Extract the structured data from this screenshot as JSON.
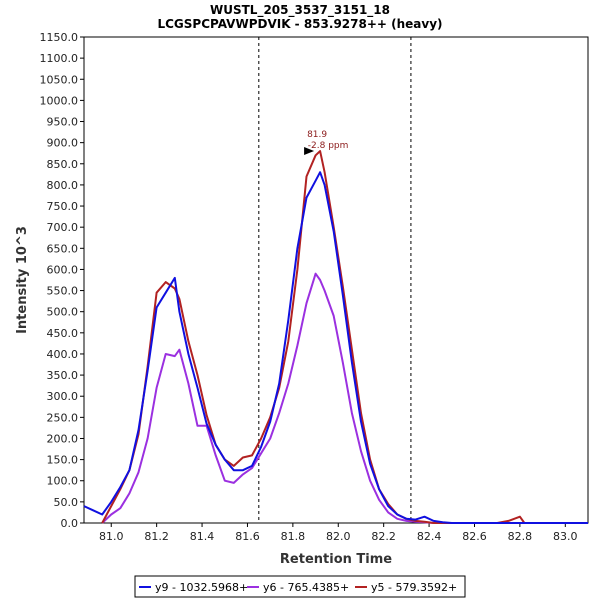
{
  "chart_data": {
    "type": "line",
    "title": "WUSTL_205_3537_3151_18",
    "subtitle": "LCGSPCPAVWPDVIK - 853.9278++ (heavy)",
    "xlabel": "Retention Time",
    "ylabel": "Intensity 10^3",
    "xlim": [
      80.88,
      83.1
    ],
    "ylim": [
      0,
      1150
    ],
    "x_ticks": [
      "81.0",
      "81.2",
      "81.4",
      "81.6",
      "81.8",
      "82.0",
      "82.2",
      "82.4",
      "82.6",
      "82.8",
      "83.0"
    ],
    "y_ticks": [
      "0.0",
      "50.0",
      "100.0",
      "150.0",
      "200.0",
      "250.0",
      "300.0",
      "350.0",
      "400.0",
      "450.0",
      "500.0",
      "550.0",
      "600.0",
      "650.0",
      "700.0",
      "750.0",
      "800.0",
      "850.0",
      "900.0",
      "950.0",
      "1000.0",
      "1050.0",
      "1100.0",
      "1150.0"
    ],
    "vlines": [
      81.65,
      82.32
    ],
    "annotation": {
      "line1": "81.9",
      "line2": "-2.8 ppm",
      "x": 81.92,
      "y": 878,
      "color": "#8b1a1a"
    },
    "legend_position": "bottom-center",
    "series": [
      {
        "name": "y9 - 1032.5968+",
        "color": "#1010e0",
        "x": [
          80.88,
          80.92,
          80.96,
          81.0,
          81.04,
          81.08,
          81.12,
          81.16,
          81.2,
          81.24,
          81.28,
          81.3,
          81.34,
          81.38,
          81.42,
          81.46,
          81.5,
          81.54,
          81.58,
          81.62,
          81.66,
          81.7,
          81.74,
          81.78,
          81.82,
          81.86,
          81.9,
          81.92,
          81.94,
          81.98,
          82.02,
          82.06,
          82.1,
          82.14,
          82.18,
          82.22,
          82.26,
          82.3,
          82.34,
          82.38,
          82.42,
          82.46,
          82.5,
          82.6,
          82.7,
          82.8,
          82.9,
          83.0,
          83.1
        ],
        "values": [
          40,
          30,
          20,
          50,
          85,
          125,
          220,
          360,
          510,
          545,
          580,
          500,
          400,
          320,
          235,
          185,
          150,
          125,
          125,
          135,
          180,
          240,
          330,
          480,
          650,
          770,
          810,
          830,
          800,
          690,
          540,
          380,
          240,
          140,
          80,
          40,
          20,
          10,
          8,
          15,
          5,
          2,
          0,
          0,
          0,
          0,
          0,
          0,
          0
        ]
      },
      {
        "name": "y6 - 765.4385+",
        "color": "#9b30e0",
        "x": [
          80.96,
          81.0,
          81.04,
          81.08,
          81.12,
          81.16,
          81.2,
          81.24,
          81.28,
          81.3,
          81.34,
          81.38,
          81.42,
          81.46,
          81.5,
          81.54,
          81.58,
          81.62,
          81.66,
          81.7,
          81.74,
          81.78,
          81.82,
          81.86,
          81.9,
          81.92,
          81.94,
          81.98,
          82.02,
          82.06,
          82.1,
          82.14,
          82.18,
          82.22,
          82.26,
          82.3,
          82.34,
          82.38,
          82.42,
          82.46,
          82.5
        ],
        "values": [
          0,
          20,
          35,
          70,
          120,
          200,
          320,
          400,
          395,
          410,
          330,
          230,
          230,
          160,
          100,
          95,
          115,
          130,
          165,
          200,
          260,
          330,
          420,
          520,
          590,
          575,
          550,
          490,
          380,
          260,
          170,
          100,
          55,
          25,
          10,
          5,
          3,
          2,
          0,
          0,
          0
        ]
      },
      {
        "name": "y5 - 579.3592+",
        "color": "#b22222",
        "x": [
          80.96,
          81.0,
          81.04,
          81.08,
          81.12,
          81.16,
          81.2,
          81.24,
          81.28,
          81.3,
          81.34,
          81.38,
          81.42,
          81.46,
          81.5,
          81.54,
          81.58,
          81.62,
          81.66,
          81.7,
          81.74,
          81.78,
          81.82,
          81.86,
          81.9,
          81.92,
          81.94,
          81.98,
          82.02,
          82.06,
          82.1,
          82.14,
          82.18,
          82.22,
          82.26,
          82.3,
          82.34,
          82.38,
          82.42,
          82.46,
          82.5,
          82.6,
          82.7,
          82.75,
          82.8,
          82.82,
          82.9,
          83.0,
          83.1
        ],
        "values": [
          0,
          40,
          80,
          125,
          210,
          370,
          545,
          570,
          555,
          530,
          430,
          350,
          255,
          185,
          150,
          135,
          155,
          160,
          200,
          250,
          320,
          430,
          600,
          820,
          870,
          880,
          830,
          700,
          560,
          410,
          260,
          150,
          80,
          45,
          20,
          10,
          5,
          3,
          0,
          0,
          0,
          0,
          0,
          5,
          15,
          0,
          0,
          0,
          0
        ]
      }
    ]
  }
}
